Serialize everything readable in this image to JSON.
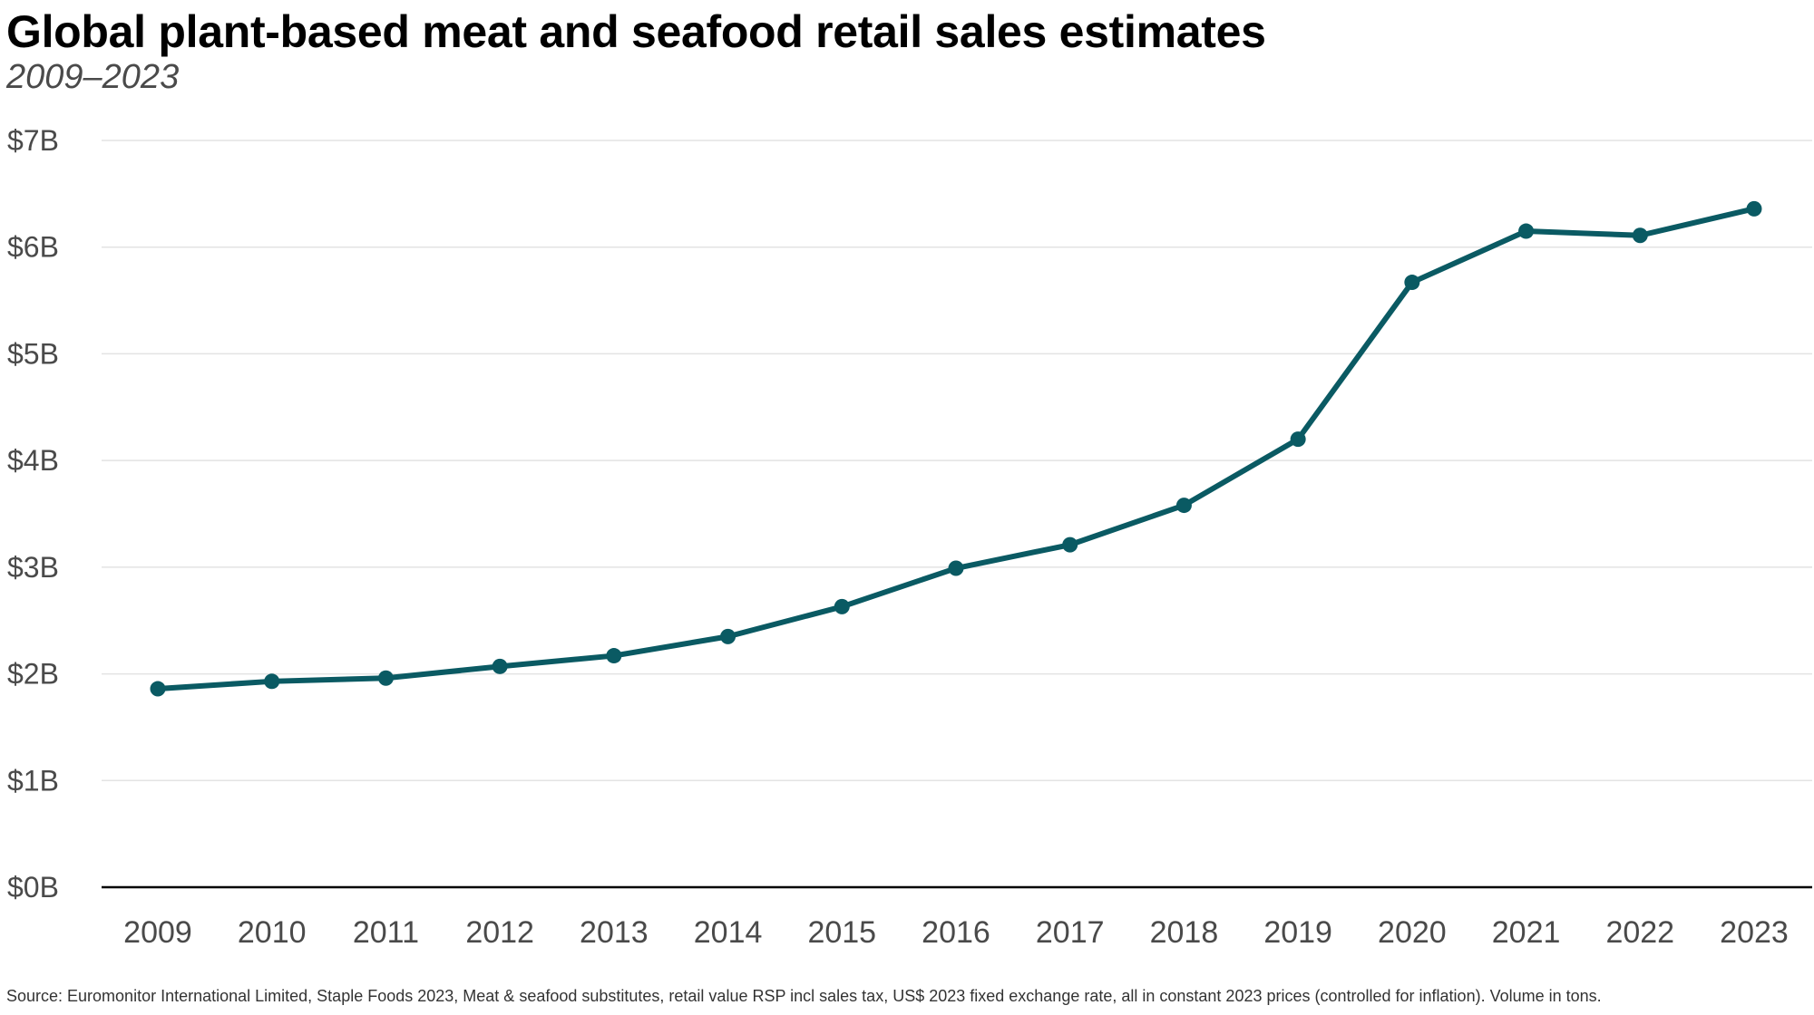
{
  "chart_data": {
    "type": "line",
    "title": "Global plant-based meat and seafood retail sales estimates",
    "subtitle": "2009–2023",
    "xlabel": "",
    "ylabel": "",
    "categories": [
      "2009",
      "2010",
      "2011",
      "2012",
      "2013",
      "2014",
      "2015",
      "2016",
      "2017",
      "2018",
      "2019",
      "2020",
      "2021",
      "2022",
      "2023"
    ],
    "series": [
      {
        "name": "Retail sales",
        "color": "#0a5a63",
        "values": [
          1.86,
          1.93,
          1.96,
          2.07,
          2.17,
          2.35,
          2.63,
          2.99,
          3.21,
          3.58,
          4.2,
          5.67,
          6.15,
          6.11,
          6.36
        ]
      }
    ],
    "ylim": [
      0,
      7
    ],
    "yticks": [
      0,
      1,
      2,
      3,
      4,
      5,
      6,
      7
    ],
    "ytick_labels": [
      "$0B",
      "$1B",
      "$2B",
      "$3B",
      "$4B",
      "$5B",
      "$6B",
      "$7B"
    ],
    "grid": true,
    "source": "Source: Euromonitor International Limited, Staple Foods 2023, Meat & seafood substitutes,  retail value RSP incl sales tax, US$ 2023 fixed exchange rate, all in constant 2023 prices (controlled for inflation). Volume in tons."
  },
  "colors": {
    "line": "#0a5a63",
    "grid": "#e3e3e3",
    "axis": "#000000",
    "tick_text": "#4a4a4a"
  }
}
